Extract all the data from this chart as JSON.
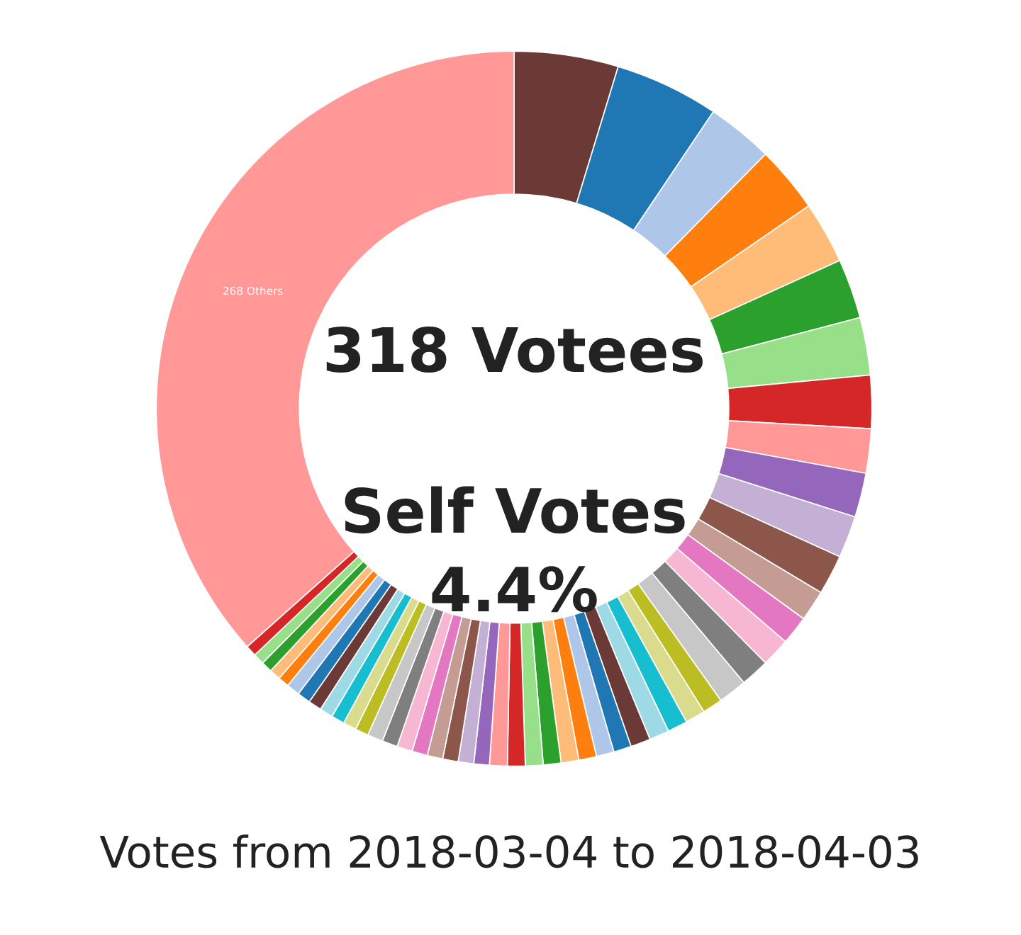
{
  "chart_data": {
    "type": "donut",
    "title": "Votes from 2018-03-04 to 2018-04-03",
    "annotations": [
      "318 Votees",
      "Self Votes",
      "4.4%"
    ],
    "categories": [
      null,
      null,
      null,
      null,
      null,
      null,
      null,
      null,
      null,
      null,
      null,
      null,
      null,
      null,
      null,
      null,
      null,
      null,
      null,
      null,
      null,
      null,
      null,
      null,
      null,
      null,
      null,
      null,
      null,
      null,
      null,
      null,
      null,
      null,
      null,
      null,
      null,
      null,
      null,
      null,
      null,
      null,
      null,
      null,
      null,
      null,
      null,
      null,
      null,
      null,
      "268 Others"
    ],
    "values": [
      4.7,
      4.7,
      3.0,
      3.0,
      2.8,
      2.7,
      2.6,
      2.4,
      2.0,
      2.0,
      1.9,
      1.8,
      1.4,
      1.3,
      1.3,
      1.3,
      1.3,
      0.9,
      0.9,
      0.9,
      0.9,
      0.9,
      0.8,
      0.8,
      0.8,
      0.8,
      0.8,
      0.8,
      0.8,
      0.8,
      0.7,
      0.7,
      0.7,
      0.7,
      0.7,
      0.7,
      0.7,
      0.7,
      0.6,
      0.6,
      0.6,
      0.6,
      0.6,
      0.6,
      0.6,
      0.5,
      0.5,
      0.5,
      0.5,
      0.5,
      36.6
    ],
    "colors": [
      "#6b3a36",
      "#1f77b4",
      "#aec7e8",
      "#ff7f0e",
      "#ffbb78",
      "#2ca02c",
      "#98df8a",
      "#d62728",
      "#ff9896",
      "#9467bd",
      "#c5b0d5",
      "#8c564b",
      "#c49c94",
      "#e377c2",
      "#f7b6d2",
      "#7f7f7f",
      "#c7c7c7",
      "#bcbd22",
      "#dbdb8d",
      "#17becf",
      "#9edae5",
      "#6b3a36",
      "#1f77b4",
      "#aec7e8",
      "#ff7f0e",
      "#ffbb78",
      "#2ca02c",
      "#98df8a",
      "#d62728",
      "#ff9896",
      "#9467bd",
      "#c5b0d5",
      "#8c564b",
      "#c49c94",
      "#e377c2",
      "#f7b6d2",
      "#7f7f7f",
      "#c7c7c7",
      "#bcbd22",
      "#dbdb8d",
      "#17becf",
      "#9edae5",
      "#6b3a36",
      "#1f77b4",
      "#aec7e8",
      "#ff7f0e",
      "#ffbb78",
      "#2ca02c",
      "#98df8a",
      "#d62728",
      "#ff9896"
    ]
  }
}
